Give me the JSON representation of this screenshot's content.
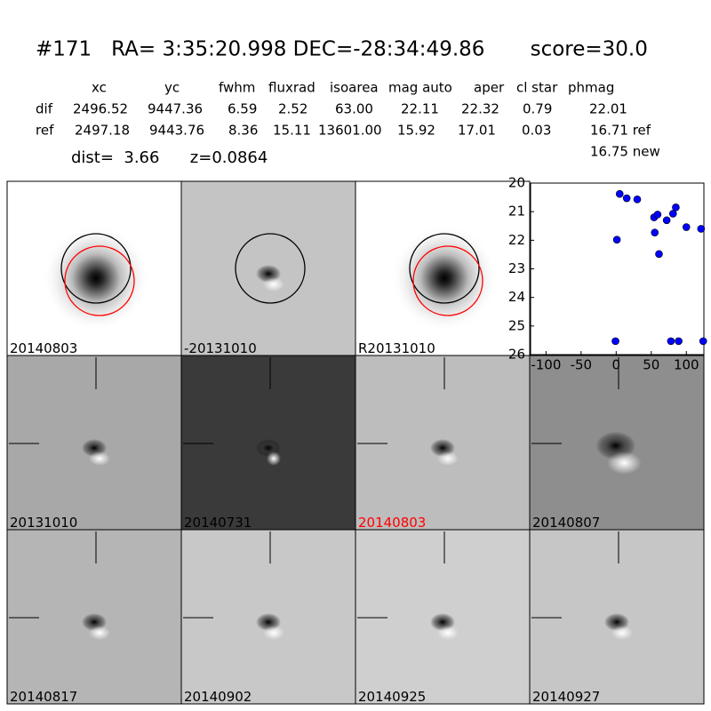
{
  "header": {
    "title": "#171   RA= 3:35:20.998 DEC=-28:34:49.86       score=30.0",
    "columns": [
      "xc",
      "yc",
      "fwhm",
      "fluxrad",
      "isoarea",
      "mag auto",
      "aper",
      "cl star",
      "phmag"
    ],
    "rows": [
      [
        "dif",
        "2496.52",
        "9447.36",
        "6.59",
        "2.52",
        "63.00",
        "22.11",
        "22.32",
        "0.79",
        "22.01"
      ],
      [
        "ref",
        "2497.18",
        "9443.76",
        "8.36",
        "15.11",
        "13601.00",
        "15.92",
        "17.01",
        "0.03",
        "16.71 ref"
      ]
    ],
    "extra": "16.75 new",
    "distance": "dist=  3.66      z=0.0864"
  },
  "panels": [
    "20140803",
    "-20131010",
    "R20131010",
    "20131010",
    "20140731",
    "20140803",
    "20140807",
    "20140817",
    "20140902",
    "20140925",
    "20140927"
  ],
  "chart_data": {
    "type": "scatter",
    "color": "#0000ff",
    "x": [
      -1,
      5,
      15,
      30,
      1,
      54,
      59,
      55,
      61,
      72,
      81,
      85,
      100,
      121,
      78,
      89,
      124
    ],
    "values": [
      25.53,
      20.38,
      20.53,
      20.57,
      21.98,
      21.2,
      21.1,
      21.73,
      22.48,
      21.3,
      21.07,
      20.85,
      21.54,
      21.6,
      25.53,
      25.53,
      25.53
    ],
    "xlim": [
      -122,
      125
    ],
    "ylim": [
      26,
      20
    ],
    "xticks": [
      -100,
      -50,
      0,
      50,
      100
    ],
    "yticks": [
      20,
      21,
      22,
      23,
      24,
      25,
      26
    ]
  }
}
